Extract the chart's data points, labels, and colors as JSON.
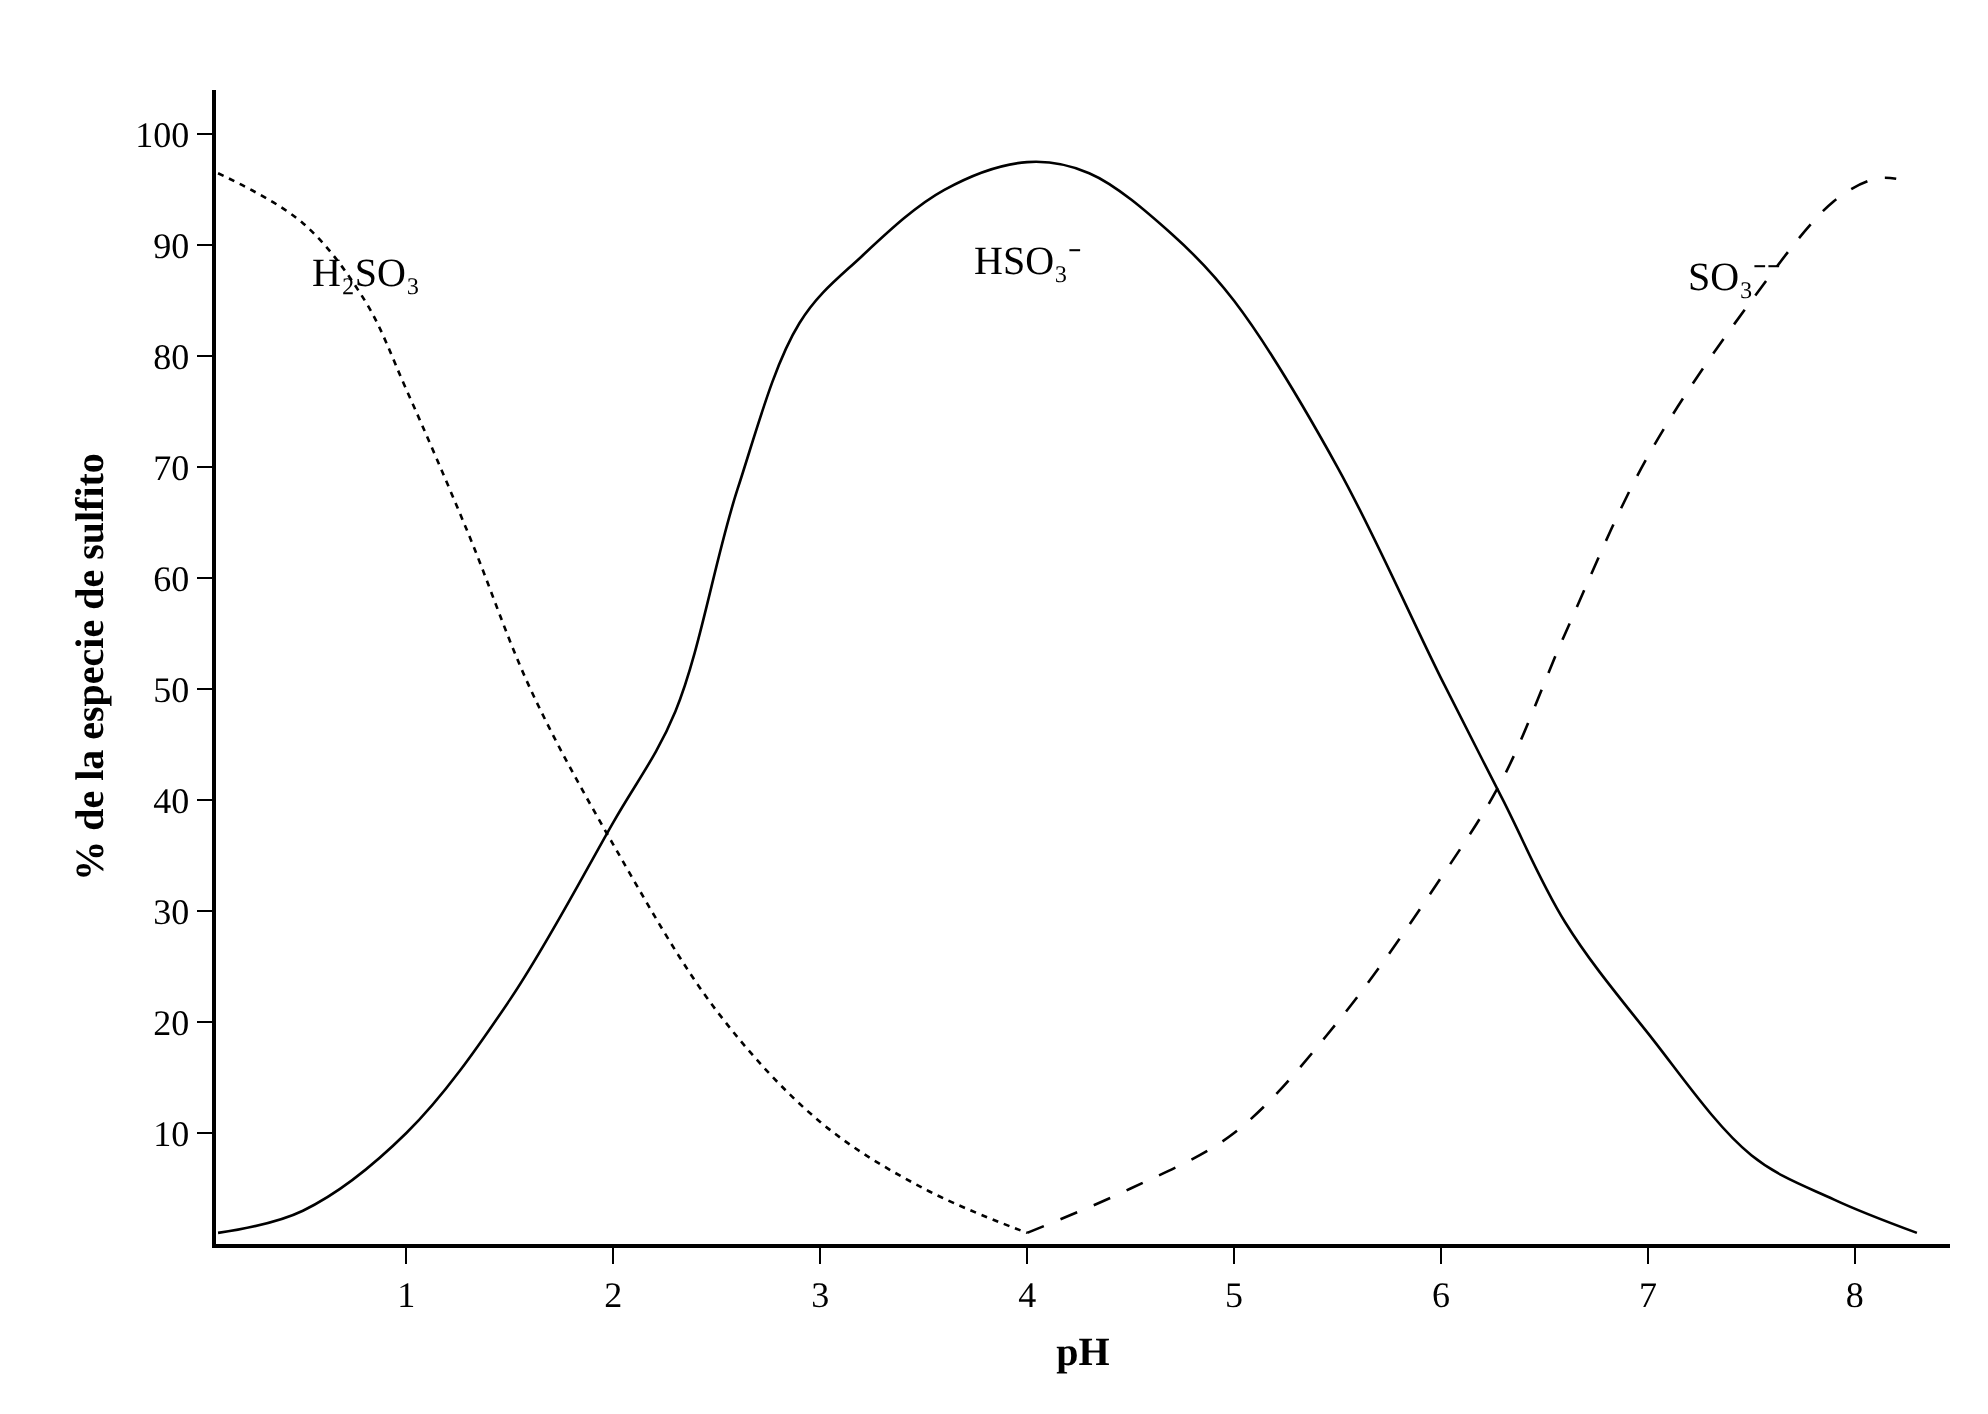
{
  "chart_data": {
    "type": "line",
    "xlabel": "pH",
    "ylabel": "% de la especie de sulfito",
    "xlim": [
      0.08,
      8.46
    ],
    "ylim": [
      0,
      104
    ],
    "xticks": [
      1,
      2,
      3,
      4,
      5,
      6,
      7,
      8
    ],
    "yticks": [
      10,
      20,
      30,
      40,
      50,
      60,
      70,
      80,
      90,
      100
    ],
    "legend": false,
    "marker": "none",
    "series": [
      {
        "name": "H₂SO₃",
        "color": "#000000",
        "line_style": "dotted",
        "x": [
          0.09,
          0.5,
          0.8,
          1,
          1.3,
          1.6,
          2,
          2.5,
          3,
          3.5,
          4
        ],
        "values": [
          96.5,
          92,
          85,
          77,
          64,
          50,
          36,
          21,
          11,
          5,
          1
        ]
      },
      {
        "name": "HSO₃⁻",
        "color": "#000000",
        "line_style": "solid",
        "x": [
          0.09,
          0.5,
          1,
          1.5,
          2,
          2.3,
          2.6,
          2.9,
          3.2,
          3.6,
          4,
          4.3,
          4.7,
          5,
          5.5,
          6,
          6.3,
          6.6,
          7,
          7.5,
          7.9,
          8.3
        ],
        "values": [
          1,
          3,
          10,
          22,
          38,
          48,
          68,
          83,
          89,
          95,
          97.5,
          96.5,
          91,
          85,
          70,
          51,
          40,
          29,
          19,
          8,
          4,
          1
        ]
      },
      {
        "name": "SO₃⁻⁻",
        "color": "#000000",
        "line_style": "dashed",
        "x": [
          4,
          4.5,
          5,
          5.5,
          6,
          6.3,
          6.6,
          7,
          7.5,
          7.9,
          8.1,
          8.2
        ],
        "values": [
          1,
          5,
          10,
          20,
          33,
          42,
          55,
          71,
          85,
          94,
          96,
          96
        ]
      }
    ]
  }
}
